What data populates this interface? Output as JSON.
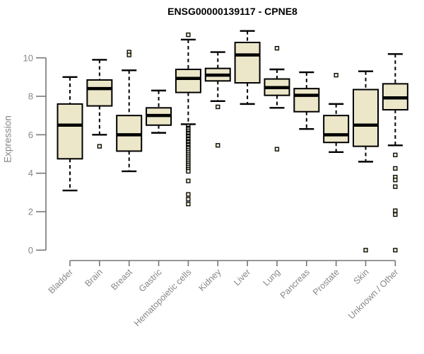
{
  "chart_data": {
    "type": "boxplot",
    "title": "ENSG00000139117 - CPNE8",
    "ylabel": "Expression",
    "xlabel": "",
    "ylim": [
      0,
      11.5
    ],
    "yticks": [
      0,
      2,
      4,
      6,
      8,
      10
    ],
    "grid": false,
    "legend": "none",
    "colors": {
      "box_fill": "#ECE7C9",
      "box_border": "#000000",
      "median": "#000000",
      "whisker": "#000000",
      "outlier_border": "#000000",
      "outlier_fill": "#ECE7C9",
      "axis": "#777777",
      "tick_label": "#878787",
      "title": "#000000",
      "background": "#ffffff"
    },
    "categories": [
      "Bladder",
      "Brain",
      "Breast",
      "Gastric",
      "Hematopoietic cells",
      "Kidney",
      "Liver",
      "Lung",
      "Pancreas",
      "Prostate",
      "Skin",
      "Unknown / Other"
    ],
    "series": [
      {
        "label": "Bladder",
        "whisker_low": 3.1,
        "q1": 4.75,
        "median": 6.5,
        "q3": 7.6,
        "whisker_high": 9.0,
        "outliers": []
      },
      {
        "label": "Brain",
        "whisker_low": 6.0,
        "q1": 7.5,
        "median": 8.4,
        "q3": 8.85,
        "whisker_high": 9.9,
        "outliers": [
          5.4
        ]
      },
      {
        "label": "Breast",
        "whisker_low": 4.1,
        "q1": 5.15,
        "median": 6.0,
        "q3": 7.0,
        "whisker_high": 9.35,
        "outliers": [
          10.3,
          10.15
        ]
      },
      {
        "label": "Gastric",
        "whisker_low": 6.1,
        "q1": 6.5,
        "median": 7.0,
        "q3": 7.4,
        "whisker_high": 8.3,
        "outliers": []
      },
      {
        "label": "Hematopoietic cells",
        "whisker_low": 6.55,
        "q1": 8.2,
        "median": 8.93,
        "q3": 9.4,
        "whisker_high": 10.95,
        "outliers": [
          11.2,
          6.45,
          6.35,
          6.3,
          6.2,
          6.1,
          6.05,
          5.95,
          5.9,
          5.8,
          5.75,
          5.65,
          5.6,
          5.5,
          5.45,
          5.35,
          5.3,
          5.2,
          5.1,
          5.0,
          4.9,
          4.8,
          4.7,
          4.6,
          4.5,
          4.4,
          4.3,
          4.2,
          4.1,
          3.6,
          2.9,
          2.65,
          2.4
        ]
      },
      {
        "label": "Kidney",
        "whisker_low": 7.75,
        "q1": 8.8,
        "median": 9.1,
        "q3": 9.45,
        "whisker_high": 10.3,
        "outliers": [
          7.45,
          5.45
        ]
      },
      {
        "label": "Liver",
        "whisker_low": 7.6,
        "q1": 8.7,
        "median": 10.15,
        "q3": 10.8,
        "whisker_high": 11.4,
        "outliers": []
      },
      {
        "label": "Lung",
        "whisker_low": 7.4,
        "q1": 8.05,
        "median": 8.45,
        "q3": 8.9,
        "whisker_high": 9.4,
        "outliers": [
          10.5,
          5.25
        ]
      },
      {
        "label": "Pancreas",
        "whisker_low": 6.3,
        "q1": 7.2,
        "median": 8.05,
        "q3": 8.4,
        "whisker_high": 9.25,
        "outliers": []
      },
      {
        "label": "Prostate",
        "whisker_low": 5.1,
        "q1": 5.6,
        "median": 6.0,
        "q3": 7.0,
        "whisker_high": 7.6,
        "outliers": [
          9.1
        ]
      },
      {
        "label": "Skin",
        "whisker_low": 4.6,
        "q1": 5.4,
        "median": 6.5,
        "q3": 8.35,
        "whisker_high": 9.3,
        "outliers": [
          0.0
        ]
      },
      {
        "label": "Unknown / Other",
        "whisker_low": 5.45,
        "q1": 7.3,
        "median": 7.92,
        "q3": 8.65,
        "whisker_high": 10.2,
        "outliers": [
          4.95,
          4.25,
          3.8,
          3.65,
          3.3,
          2.05,
          1.85,
          0.0
        ]
      }
    ]
  }
}
